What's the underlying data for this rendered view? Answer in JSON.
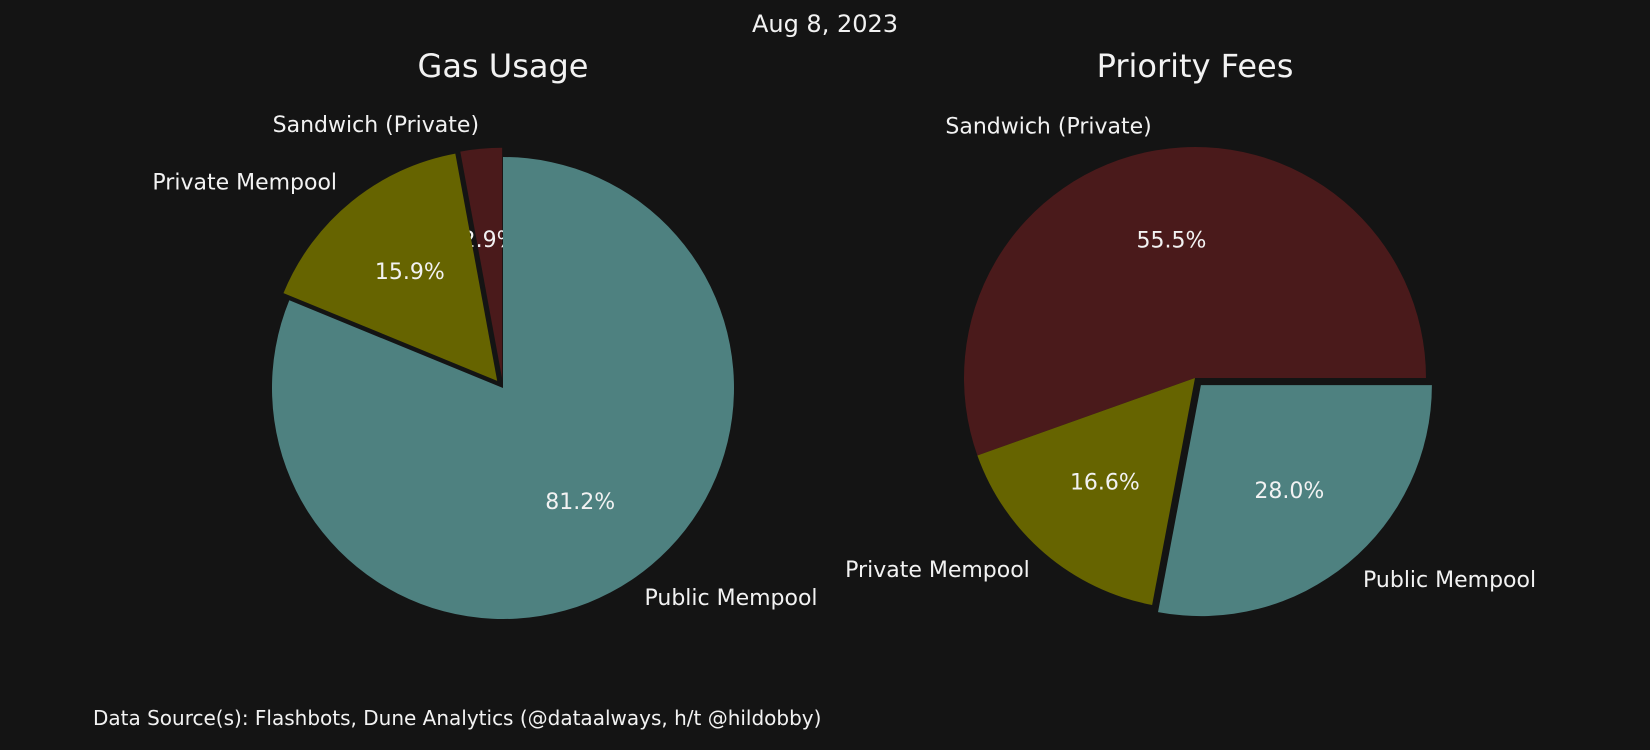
{
  "suptitle": "Aug 8, 2023",
  "footer": "Data Source(s): Flashbots, Dune Analytics (@dataalways, h/t @hildobby)",
  "colors": {
    "background": "#141414",
    "sandwich_private": "#4a1a1b",
    "private_mempool": "#666400",
    "public_mempool": "#4e8180",
    "text": "#f2f2f2"
  },
  "chart_data": [
    {
      "type": "pie",
      "title": "Gas Usage",
      "start_angle": 90,
      "direction": "counterclockwise",
      "slices": [
        {
          "label": "Sandwich (Private)",
          "value": 2.9,
          "pct_label": "2.9%",
          "color": "#4a1a1b",
          "exploded": true
        },
        {
          "label": "Private Mempool",
          "value": 15.9,
          "pct_label": "15.9%",
          "color": "#666400",
          "exploded": true
        },
        {
          "label": "Public Mempool",
          "value": 81.2,
          "pct_label": "81.2%",
          "color": "#4e8180",
          "exploded": false
        }
      ]
    },
    {
      "type": "pie",
      "title": "Priority Fees",
      "start_angle": 0,
      "direction": "counterclockwise",
      "slices": [
        {
          "label": "Sandwich (Private)",
          "value": 55.5,
          "pct_label": "55.5%",
          "color": "#4a1a1b",
          "exploded": false
        },
        {
          "label": "Private Mempool",
          "value": 16.6,
          "pct_label": "16.6%",
          "color": "#666400",
          "exploded": false
        },
        {
          "label": "Public Mempool",
          "value": 28.0,
          "pct_label": "28.0%",
          "color": "#4e8180",
          "exploded": true
        }
      ]
    }
  ]
}
